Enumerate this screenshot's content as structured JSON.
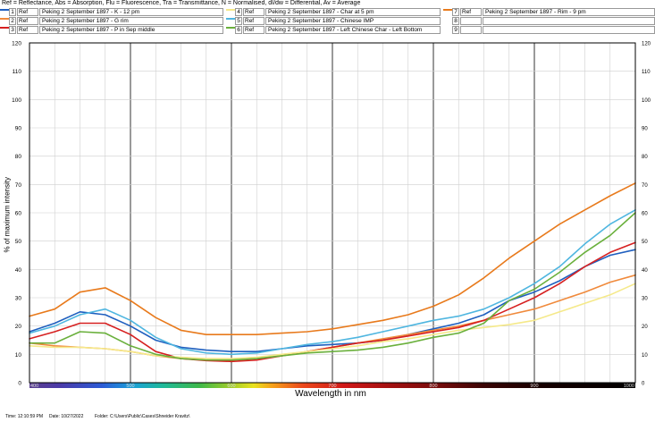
{
  "header_note": "Ref = Reflectance, Abs = Absorption, Flu = Fluorescence, Tra = Transmittance, N = Normalised, dI/dw = Differential, Av = Average",
  "legend": [
    {
      "num": "1",
      "tag": "Ref",
      "name": "Peking 2 September 1897 - K - 12 pm",
      "color": "#1f5fbf"
    },
    {
      "num": "2",
      "tag": "Ref",
      "name": "Peking 2 September 1897 - G rim",
      "color": "#f08a3c"
    },
    {
      "num": "3",
      "tag": "Ref",
      "name": "Peking 2 September 1897 - P in Sep  middle",
      "color": "#d62020"
    },
    {
      "num": "4",
      "tag": "Ref",
      "name": "Peking 2 September 1897 - Char at 5 pm",
      "color": "#f5e98a"
    },
    {
      "num": "5",
      "tag": "Ref",
      "name": "Peking 2 September 1897 - Chinese IMP",
      "color": "#4fb6e0"
    },
    {
      "num": "6",
      "tag": "Ref",
      "name": "Peking 2 September 1897 - Left Chinese Char - Left Bottom",
      "color": "#6ab03c"
    },
    {
      "num": "7",
      "tag": "Ref",
      "name": "Peking 2 September 1897 - Rim - 9 pm",
      "color": "#e87a1c"
    },
    {
      "num": "8",
      "tag": "",
      "name": "",
      "color": ""
    },
    {
      "num": "9",
      "tag": "",
      "name": "",
      "color": ""
    }
  ],
  "footer": {
    "time": "Time: 12:10:59 PM",
    "date": "Date: 10/27/2022",
    "folder": "Folder: C:\\Users\\Public\\Cases\\Shneider Kravitz\\"
  },
  "chart_data": {
    "type": "line",
    "title": "",
    "xlabel": "Wavelength in nm",
    "ylabel": "% of maximum intensity",
    "xlim": [
      400,
      1000
    ],
    "ylim": [
      0,
      120
    ],
    "x_ticks": [
      "400",
      "500",
      "600",
      "700",
      "800",
      "900",
      "1000"
    ],
    "y_ticks": [
      "0",
      "10",
      "20",
      "30",
      "40",
      "50",
      "60",
      "70",
      "80",
      "90",
      "100",
      "110",
      "120"
    ],
    "grid": true,
    "x": [
      400,
      425,
      450,
      475,
      500,
      525,
      550,
      575,
      600,
      625,
      650,
      675,
      700,
      725,
      750,
      775,
      800,
      825,
      850,
      875,
      900,
      925,
      950,
      975,
      1000
    ],
    "series": [
      {
        "name": "1",
        "color": "#1f5fbf",
        "values": [
          18,
          21,
          25,
          24,
          20,
          15,
          12.5,
          11.5,
          11,
          11,
          12,
          13,
          13.5,
          14,
          15,
          17,
          19,
          21,
          24,
          29,
          32,
          36,
          41,
          45,
          47
        ]
      },
      {
        "name": "2",
        "color": "#f08a3c",
        "values": [
          14,
          13,
          12.5,
          12,
          11,
          9.5,
          8.5,
          8,
          8,
          8.5,
          9.5,
          11,
          12.5,
          14,
          15.5,
          17,
          18.5,
          20,
          22,
          24,
          26,
          29,
          32,
          35.5,
          38
        ]
      },
      {
        "name": "3",
        "color": "#d62020",
        "values": [
          15.5,
          18,
          21,
          21,
          17,
          11,
          8.5,
          7.8,
          7.5,
          8,
          9.5,
          11,
          12.5,
          14,
          15,
          16.5,
          18,
          19.5,
          22,
          26,
          30,
          35,
          41,
          46,
          49.5
        ]
      },
      {
        "name": "4",
        "color": "#f5e98a",
        "values": [
          13,
          12.5,
          12.5,
          12,
          11,
          9.5,
          9,
          8.5,
          8.5,
          9,
          10,
          11,
          12,
          13,
          14.5,
          15.5,
          17,
          18.5,
          19.5,
          20.5,
          22,
          25,
          28,
          31,
          35
        ]
      },
      {
        "name": "5",
        "color": "#4fb6e0",
        "values": [
          17.5,
          20,
          24,
          26,
          22,
          16,
          12,
          10.5,
          10,
          10.5,
          12,
          13.5,
          14.5,
          16,
          18,
          20,
          22,
          23.5,
          26,
          30,
          35,
          41,
          49,
          56,
          61
        ]
      },
      {
        "name": "6",
        "color": "#6ab03c",
        "values": [
          14,
          14,
          18,
          17.5,
          13,
          10,
          8.5,
          8,
          8,
          8.5,
          9.5,
          10.5,
          11,
          11.5,
          12.5,
          14,
          16,
          17.5,
          21,
          29,
          33,
          39,
          46,
          52,
          60
        ]
      },
      {
        "name": "7",
        "color": "#e87a1c",
        "values": [
          23.5,
          26,
          32,
          33.5,
          29,
          23,
          18.5,
          17,
          17,
          17,
          17.5,
          18,
          19,
          20.5,
          22,
          24,
          27,
          31,
          37,
          44,
          50,
          56,
          61,
          66,
          70.5
        ]
      }
    ]
  }
}
